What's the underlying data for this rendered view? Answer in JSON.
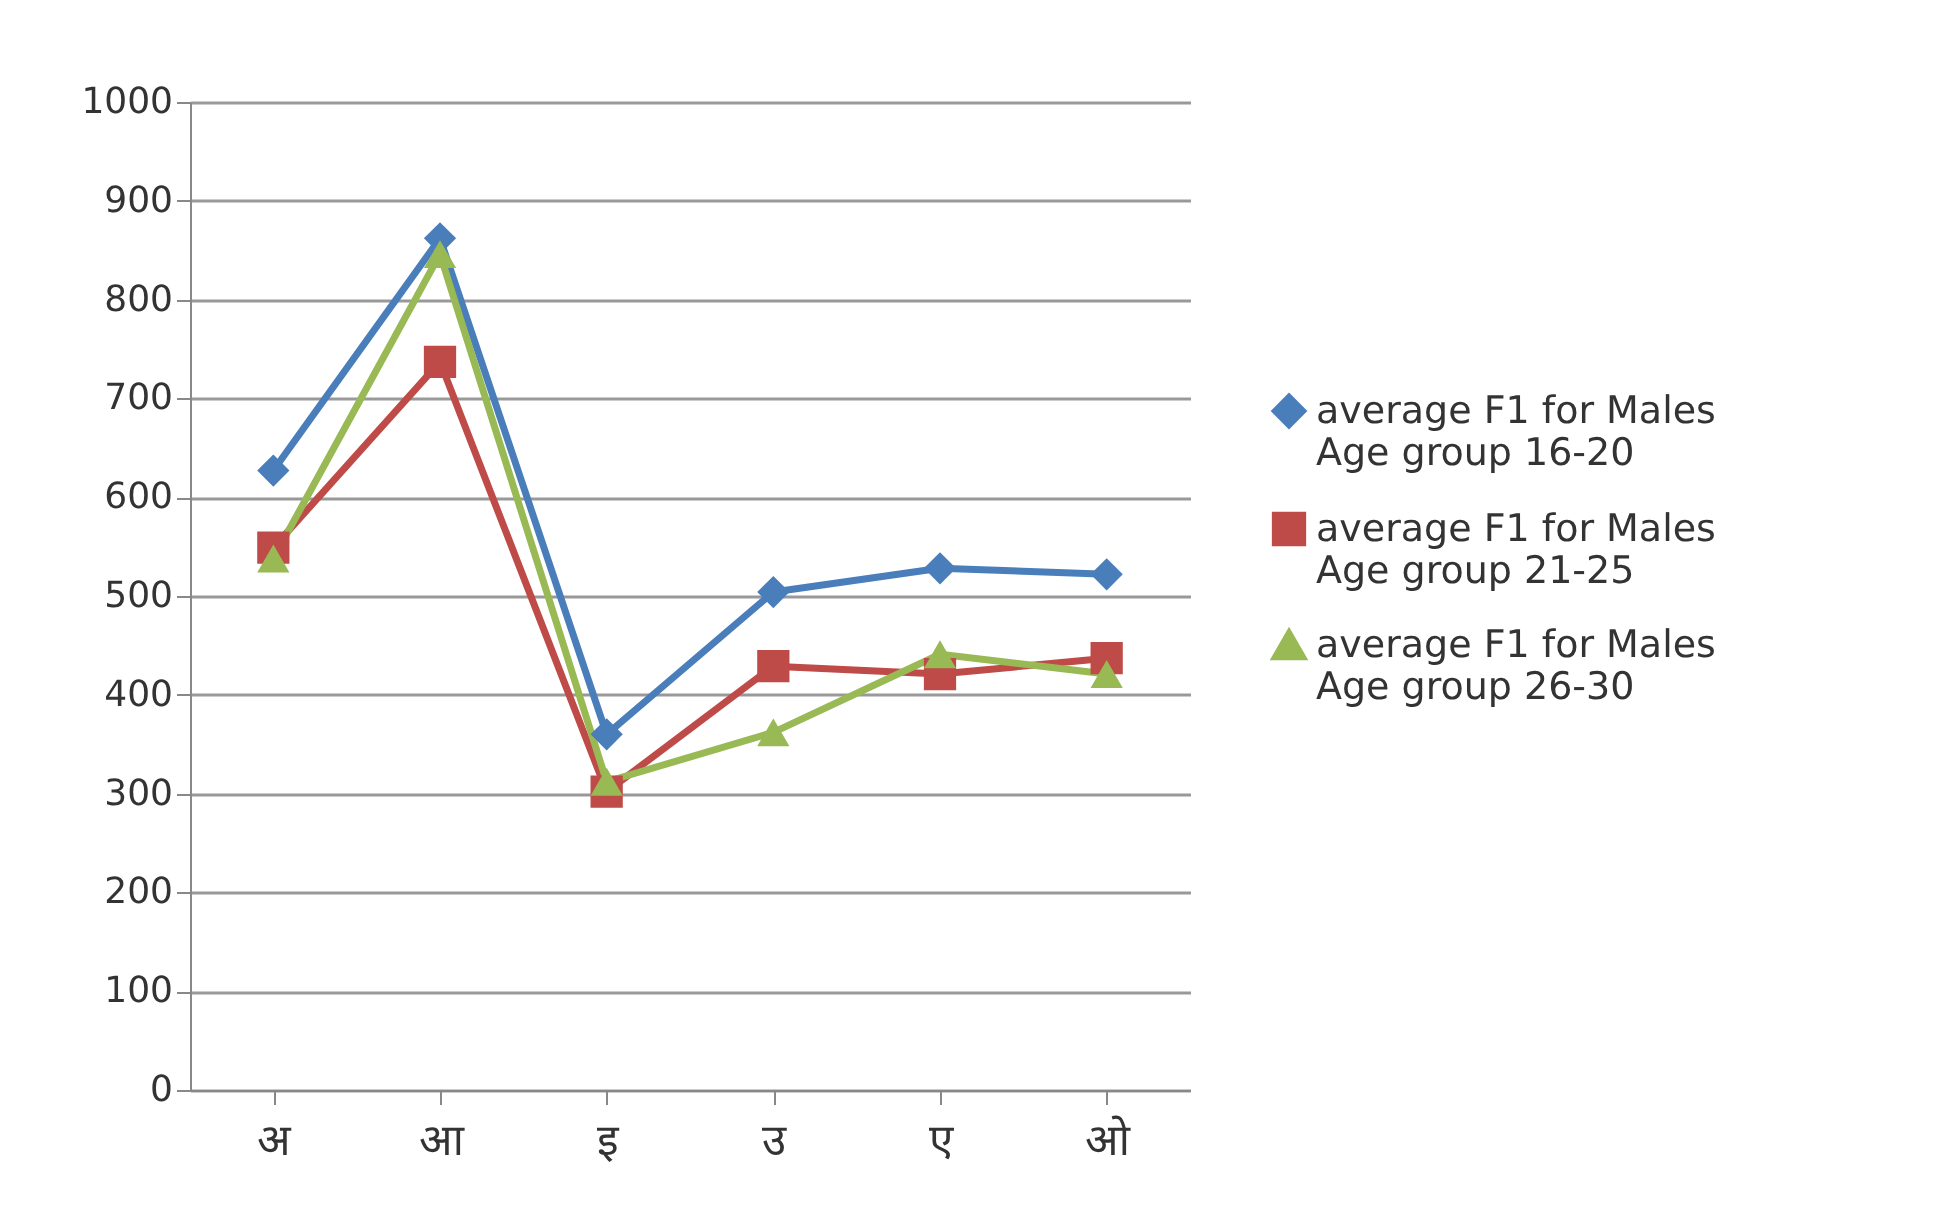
{
  "chart_data": {
    "type": "line",
    "categories": [
      "अ",
      "आ",
      "इ",
      "उ",
      "ए",
      "ओ"
    ],
    "series": [
      {
        "name": "average F1 for Males Age group 16-20",
        "color": "#4a7ebb",
        "marker": "diamond",
        "values": [
          627,
          862,
          360,
          504,
          528,
          522
        ]
      },
      {
        "name": "average F1 for Males Age group 21-25",
        "color": "#be4b48",
        "marker": "square",
        "values": [
          549,
          737,
          302,
          429,
          421,
          437
        ]
      },
      {
        "name": "average F1 for Males Age group 26-30",
        "color": "#98b954",
        "marker": "triangle",
        "values": [
          538,
          846,
          312,
          362,
          441,
          421
        ]
      }
    ],
    "ylim": [
      0,
      1000
    ],
    "yticks": [
      0,
      100,
      200,
      300,
      400,
      500,
      600,
      700,
      800,
      900,
      1000
    ],
    "grid": "y",
    "legend": "right",
    "line_style": "solid"
  }
}
